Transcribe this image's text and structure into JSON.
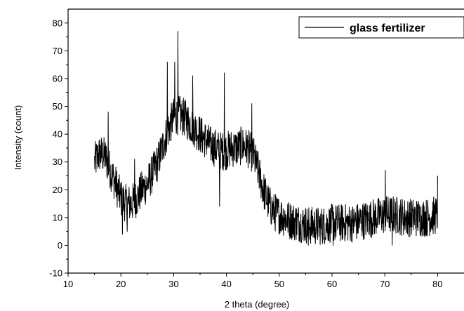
{
  "chart_data": {
    "type": "line",
    "title": "",
    "xlabel": "2 theta (degree)",
    "ylabel": "Intensity (count)",
    "xlim": [
      10,
      85
    ],
    "ylim": [
      -10,
      85
    ],
    "x_ticks": [
      10,
      20,
      30,
      40,
      50,
      60,
      70,
      80
    ],
    "y_ticks": [
      -10,
      0,
      10,
      20,
      30,
      40,
      50,
      60,
      70,
      80
    ],
    "grid": false,
    "legend_position": "top-right",
    "series": [
      {
        "name": "glass fertilizer",
        "color": "#000000",
        "x_start": 15,
        "x_end": 80,
        "x_step": 0.05,
        "baseline_x": [
          15,
          16,
          17,
          18,
          19,
          20,
          21,
          22,
          23,
          24,
          25,
          26,
          27,
          28,
          29,
          30,
          31,
          32,
          33,
          34,
          35,
          36,
          37,
          38,
          39,
          40,
          41,
          42,
          43,
          44,
          45,
          46,
          47,
          48,
          49,
          50,
          52,
          54,
          56,
          58,
          60,
          62,
          64,
          66,
          68,
          70,
          72,
          74,
          76,
          78,
          80
        ],
        "baseline_y": [
          30,
          33,
          32,
          27,
          22,
          17,
          15,
          15,
          17,
          20,
          22,
          26,
          30,
          36,
          42,
          46,
          47,
          46,
          44,
          42,
          40,
          38,
          36,
          35,
          34,
          34,
          35,
          35,
          36,
          35,
          33,
          27,
          20,
          15,
          12,
          11,
          9,
          8,
          7,
          7,
          8,
          8,
          8,
          9,
          10,
          11,
          11,
          10,
          10,
          10,
          11
        ],
        "noise_amplitude": 7,
        "peaks": [
          {
            "x": 17.6,
            "y": 48
          },
          {
            "x": 22.6,
            "y": 31
          },
          {
            "x": 28.8,
            "y": 66
          },
          {
            "x": 30.2,
            "y": 66
          },
          {
            "x": 30.8,
            "y": 77
          },
          {
            "x": 33.6,
            "y": 61
          },
          {
            "x": 39.6,
            "y": 62
          },
          {
            "x": 44.8,
            "y": 51
          },
          {
            "x": 70.1,
            "y": 27
          },
          {
            "x": 80.0,
            "y": 25
          }
        ],
        "dips": [
          {
            "x": 20.3,
            "y": 4
          },
          {
            "x": 21.2,
            "y": 5
          },
          {
            "x": 38.7,
            "y": 14
          },
          {
            "x": 55.5,
            "y": 0
          },
          {
            "x": 60.2,
            "y": 0
          },
          {
            "x": 71.4,
            "y": 0
          }
        ]
      }
    ]
  }
}
